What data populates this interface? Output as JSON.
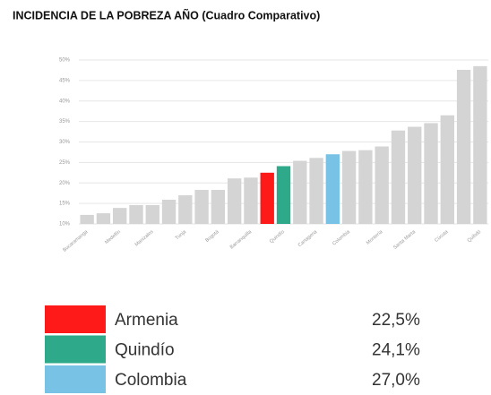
{
  "chart_data": {
    "type": "bar",
    "title": "INCIDENCIA DE LA POBREZA AÑO (Cuadro Comparativo)",
    "categories": [
      "Bucaramanga",
      null,
      "Medellín",
      null,
      "Manizales",
      null,
      "Tunja",
      null,
      "Bogotá",
      null,
      "Barranquilla",
      null,
      "Quindío",
      null,
      "Cartagena",
      null,
      "Colombia",
      null,
      "Montería",
      null,
      "Santa Marta",
      null,
      "Cúcuta",
      null,
      "Quibdó"
    ],
    "values": [
      12.2,
      12.6,
      13.9,
      14.6,
      14.6,
      15.9,
      17.0,
      18.3,
      18.3,
      21.1,
      21.3,
      22.5,
      24.1,
      25.4,
      26.1,
      27.0,
      27.8,
      28.0,
      28.9,
      32.8,
      33.7,
      34.6,
      36.5,
      47.6,
      48.5
    ],
    "colors": [
      "#d4d4d4",
      "#d4d4d4",
      "#d4d4d4",
      "#d4d4d4",
      "#d4d4d4",
      "#d4d4d4",
      "#d4d4d4",
      "#d4d4d4",
      "#d4d4d4",
      "#d4d4d4",
      "#d4d4d4",
      "#ff1a1a",
      "#2ea98a",
      "#d4d4d4",
      "#d4d4d4",
      "#78c2e6",
      "#d4d4d4",
      "#d4d4d4",
      "#d4d4d4",
      "#d4d4d4",
      "#d4d4d4",
      "#d4d4d4",
      "#d4d4d4",
      "#d4d4d4",
      "#d4d4d4"
    ],
    "ylim": [
      10,
      50
    ],
    "yticks": [
      {
        "value": 10,
        "label": "10%"
      },
      {
        "value": 15,
        "label": "15%"
      },
      {
        "value": 20,
        "label": "20%"
      },
      {
        "value": 25,
        "label": "25%"
      },
      {
        "value": 30,
        "label": "30%"
      },
      {
        "value": 35,
        "label": "35%"
      },
      {
        "value": 40,
        "label": "40%"
      },
      {
        "value": 45,
        "label": "45%"
      },
      {
        "value": 50,
        "label": "50%"
      }
    ],
    "grid": true,
    "highlights": {
      "names": [
        "Armenia",
        "Quindío",
        "Colombia"
      ],
      "colors": [
        "#ff1a1a",
        "#2ea98a",
        "#78c2e6"
      ],
      "values": [
        22.5,
        24.1,
        27.0
      ],
      "value_labels": [
        "22,5%",
        "24,1%",
        "27,0%"
      ]
    }
  }
}
